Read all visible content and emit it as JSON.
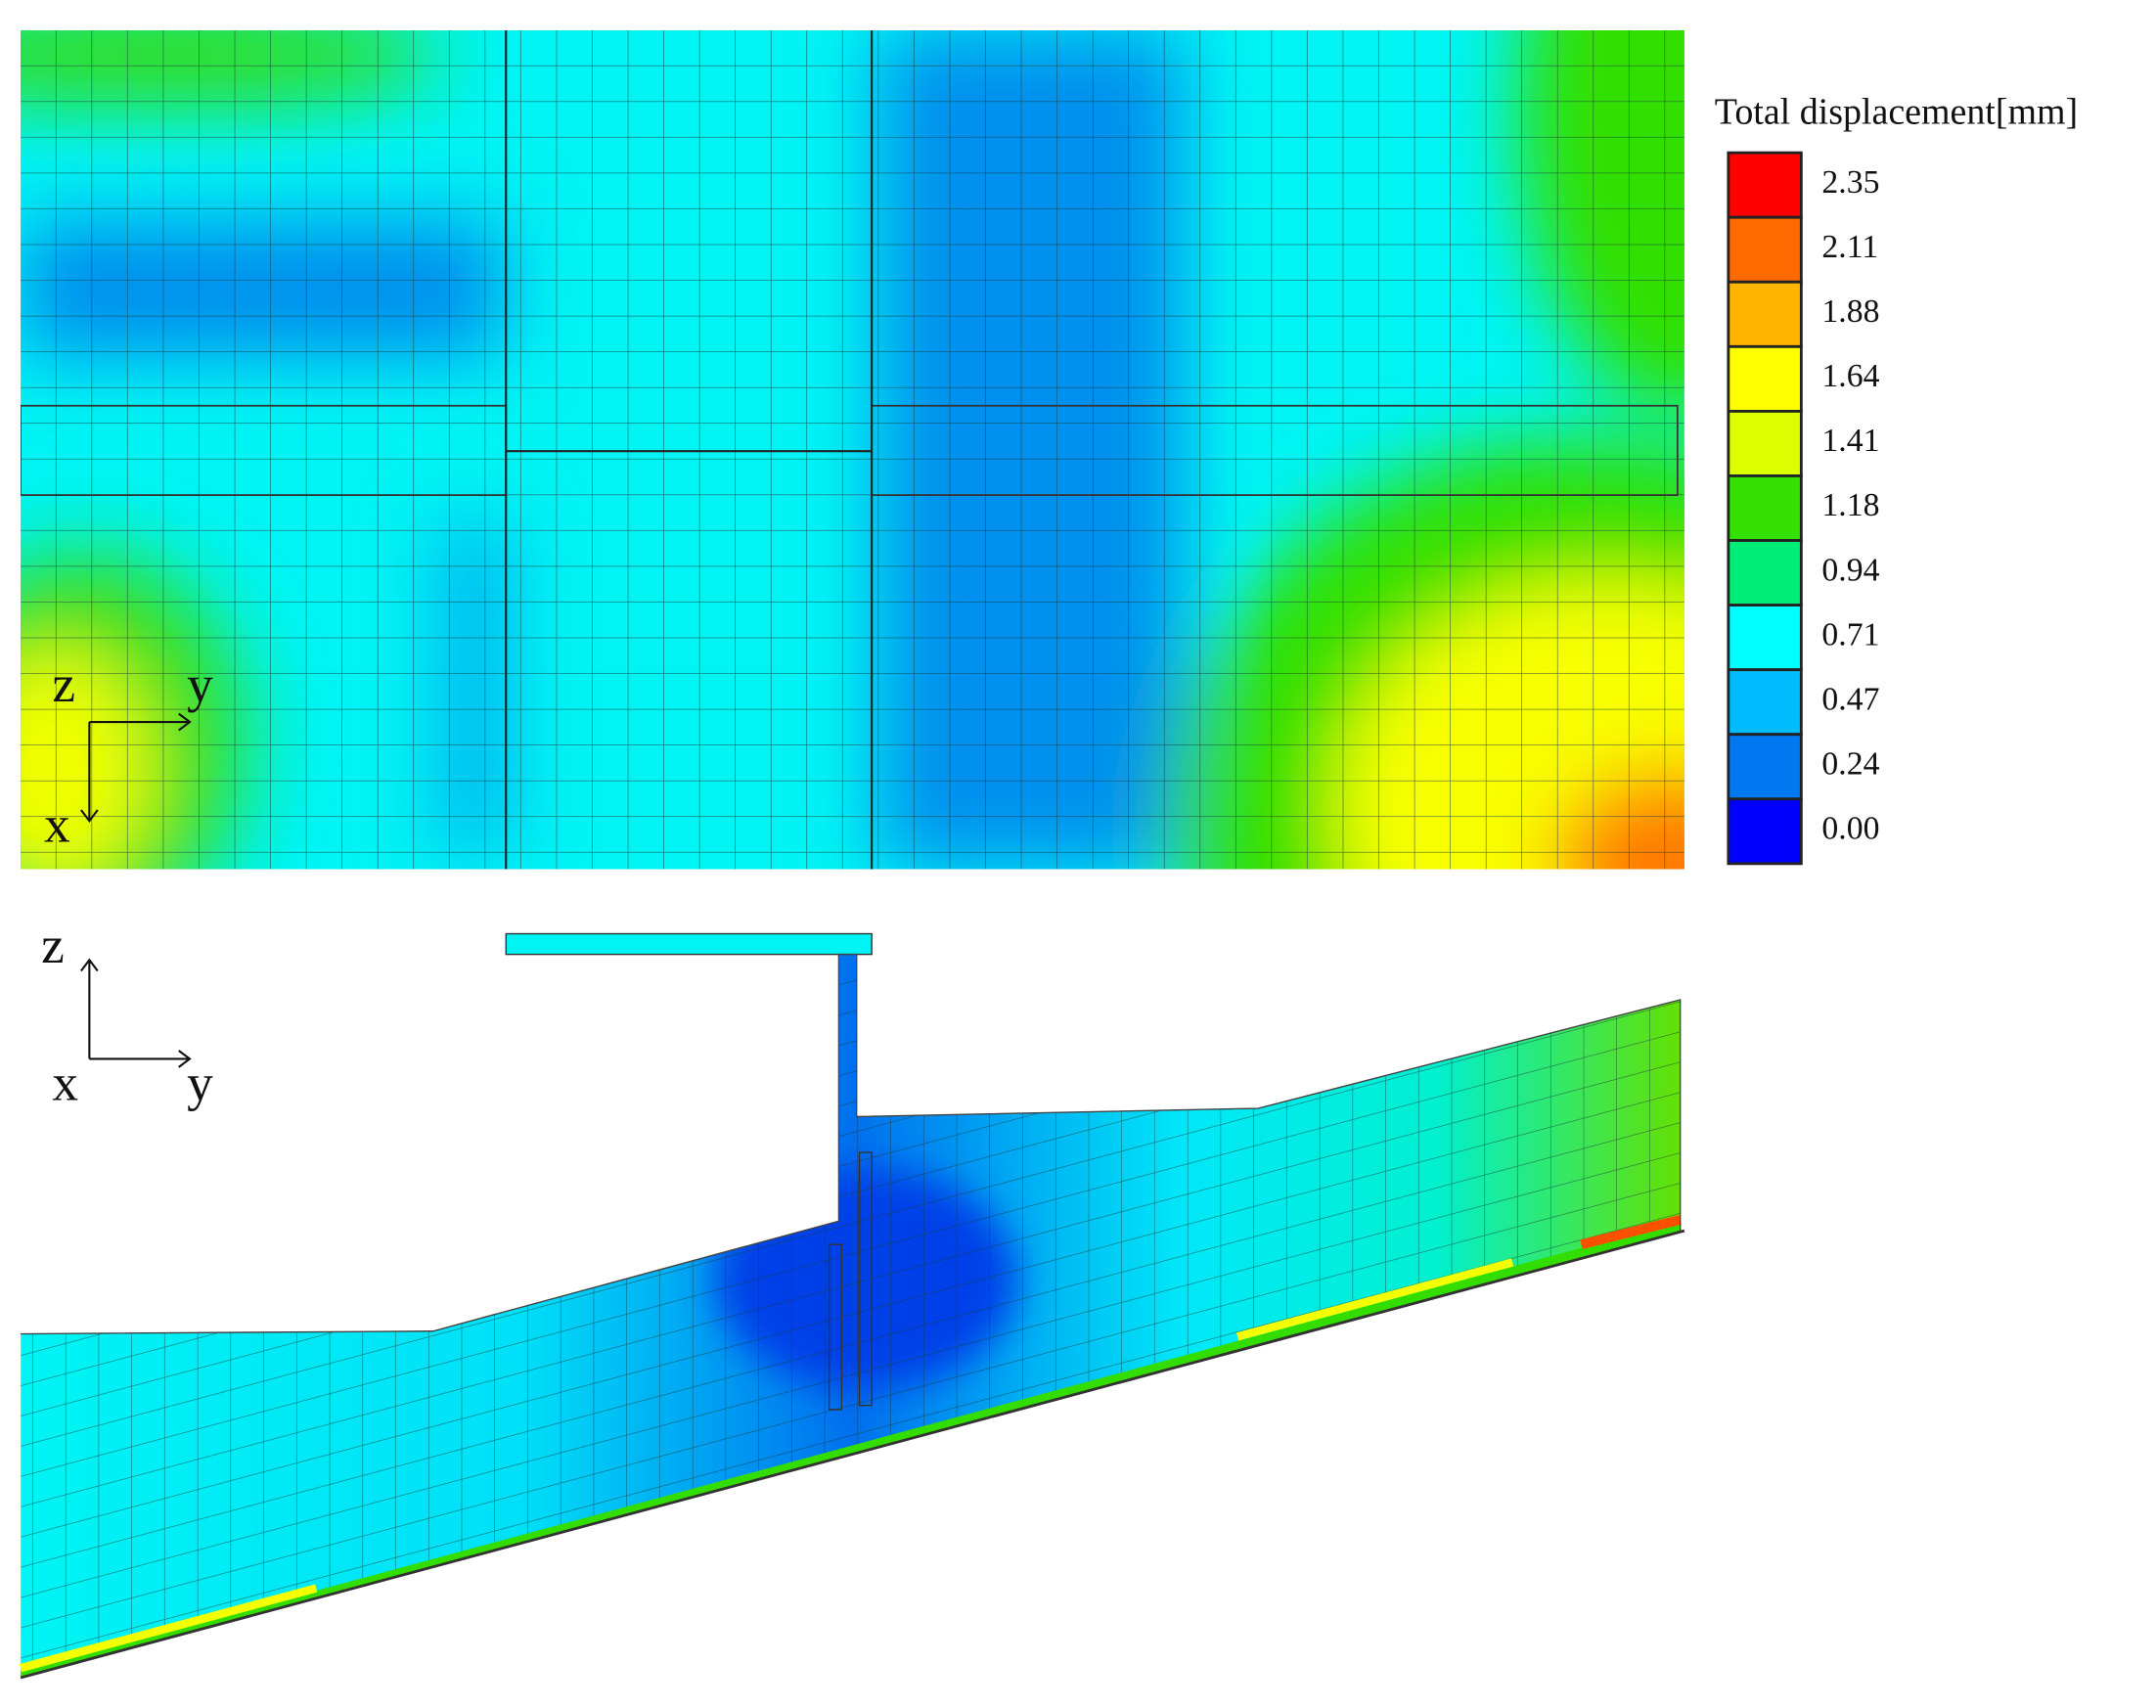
{
  "legend": {
    "title": "Total displacement[mm]",
    "entries": [
      {
        "label": "2.35",
        "color": "#ff0000"
      },
      {
        "label": "2.11",
        "color": "#ff6a00"
      },
      {
        "label": "1.88",
        "color": "#ffb400"
      },
      {
        "label": "1.64",
        "color": "#ffff00"
      },
      {
        "label": "1.41",
        "color": "#dcff00"
      },
      {
        "label": "1.18",
        "color": "#33e000"
      },
      {
        "label": "0.94",
        "color": "#00ee78"
      },
      {
        "label": "0.71",
        "color": "#00ffff"
      },
      {
        "label": "0.47",
        "color": "#00bcff"
      },
      {
        "label": "0.24",
        "color": "#0078f0"
      },
      {
        "label": "0.00",
        "color": "#0000ff"
      }
    ]
  },
  "top_view": {
    "axes": {
      "z": "z",
      "y": "y",
      "x": "x"
    }
  },
  "side_view": {
    "axes": {
      "z": "z",
      "y": "y",
      "x": "x"
    }
  }
}
